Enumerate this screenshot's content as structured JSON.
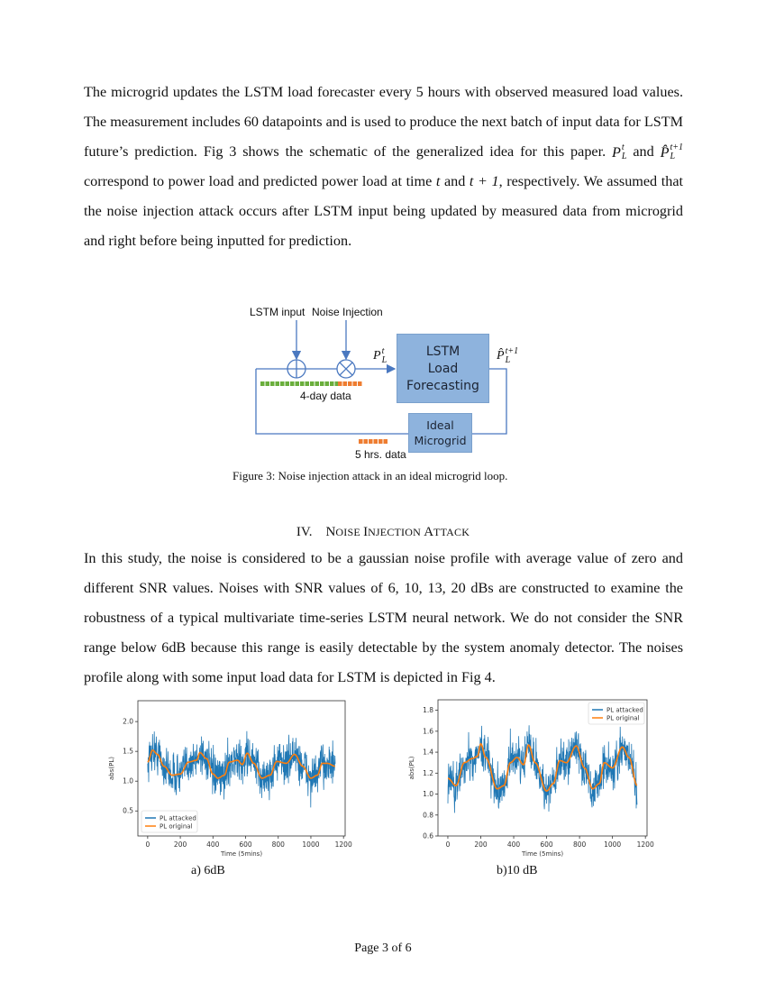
{
  "paragraph1": {
    "a": "The microgrid updates the LSTM load forecaster every 5 hours with observed measured load values. The measurement includes 60 datapoints and is used to produce the next batch of input data for LSTM future’s prediction. Fig 3 shows the schematic of the generalized idea for this paper. ",
    "b": " and ",
    "c": " correspond to power load and predicted power load at time ",
    "d": " and ",
    "e": ", respectively. We assumed that the noise injection attack occurs after LSTM input being updated by measured data from microgrid and right before being inputted for prediction.",
    "sym_P": "P",
    "sym_Phat": "P̂",
    "sub_L": "L",
    "sup_t": "t",
    "sup_t1": "t+1",
    "t": "t",
    "t1": "t + 1"
  },
  "figure3": {
    "label_lstm_input": "LSTM input",
    "label_noise_injection": "Noise Injection",
    "label_4day": "4-day data",
    "label_5hrs": "5 hrs. data",
    "box_lstm": [
      "LSTM",
      "Load",
      "Forecasting"
    ],
    "box_microgrid": [
      "Ideal",
      "Microgrid"
    ],
    "caption": "Figure 3: Noise injection attack in an ideal microgrid loop.",
    "colors": {
      "box": "#8eb3dd",
      "line": "#4a78c0",
      "green": "#6aae3c",
      "orange": "#ee7d31"
    }
  },
  "section": {
    "number": "IV.",
    "title_first_N": "N",
    "title_rest1": "OISE ",
    "title_I": "I",
    "title_rest2": "NJECTION ",
    "title_A": "A",
    "title_rest3": "TTACK"
  },
  "paragraph2": "In this study, the noise is considered to be a gaussian noise profile with average value of zero and different SNR values. Noises with SNR values of 6, 10, 13, 20 dBs are constructed to examine the robustness of a typical multivariate time-series LSTM neural network. We do not consider the SNR range below 6dB because this range is easily detectable by the system anomaly detector. The noises profile along with some input load data for LSTM is depicted in Fig 4.",
  "chart_data": [
    {
      "type": "line",
      "subcaption": "a) 6dB",
      "xlabel": "Time (5mins)",
      "ylabel": "abs(PL)",
      "xticks": [
        0,
        200,
        400,
        600,
        800,
        1000,
        1200
      ],
      "yticks": [
        0.5,
        1.0,
        1.5,
        2.0
      ],
      "ytick_labels": [
        "0.5",
        "1.0",
        "1.5",
        "2.0"
      ],
      "xlim": [
        -60,
        1210
      ],
      "ylim": [
        0.08,
        2.35
      ],
      "legend": "bottom-left",
      "noise_amplitude": 0.33,
      "series": [
        {
          "name": "PL attacked",
          "color": "#1f77b4"
        },
        {
          "name": "PL original",
          "color": "#ff7f0e",
          "x": [
            0,
            30,
            60,
            100,
            150,
            200,
            250,
            300,
            320,
            360,
            400,
            430,
            470,
            500,
            550,
            580,
            610,
            650,
            700,
            750,
            790,
            850,
            900,
            950,
            1000,
            1040,
            1070,
            1100,
            1150
          ],
          "y": [
            1.32,
            1.52,
            1.45,
            1.25,
            1.1,
            1.12,
            1.32,
            1.35,
            1.48,
            1.38,
            1.12,
            1.05,
            1.1,
            1.32,
            1.35,
            1.28,
            1.47,
            1.3,
            1.05,
            1.1,
            1.33,
            1.3,
            1.45,
            1.25,
            1.05,
            1.1,
            1.3,
            1.3,
            1.25
          ]
        }
      ]
    },
    {
      "type": "line",
      "subcaption": "b)10 dB",
      "xlabel": "Time (5mins)",
      "ylabel": "abs(PL)",
      "xticks": [
        0,
        200,
        400,
        600,
        800,
        1000,
        1200
      ],
      "yticks": [
        0.6,
        0.8,
        1.0,
        1.2,
        1.4,
        1.6,
        1.8
      ],
      "ytick_labels": [
        "0.6",
        "0.8",
        "1.0",
        "1.2",
        "1.4",
        "1.6",
        "1.8"
      ],
      "xlim": [
        -60,
        1210
      ],
      "ylim": [
        0.6,
        1.9
      ],
      "legend": "top-right",
      "noise_amplitude": 0.19,
      "series": [
        {
          "name": "PL attacked",
          "color": "#1f77b4"
        },
        {
          "name": "PL original",
          "color": "#ff7f0e",
          "x": [
            0,
            50,
            100,
            150,
            180,
            200,
            230,
            300,
            340,
            380,
            420,
            460,
            490,
            530,
            600,
            640,
            680,
            720,
            780,
            830,
            880,
            920,
            950,
            1000,
            1060,
            1100,
            1150
          ],
          "y": [
            1.15,
            1.08,
            1.3,
            1.34,
            1.36,
            1.48,
            1.35,
            1.05,
            1.08,
            1.3,
            1.35,
            1.28,
            1.47,
            1.3,
            1.03,
            1.1,
            1.32,
            1.3,
            1.46,
            1.25,
            1.05,
            1.1,
            1.3,
            1.25,
            1.45,
            1.35,
            1.08
          ]
        }
      ]
    }
  ],
  "footer": "Page 3 of 6"
}
